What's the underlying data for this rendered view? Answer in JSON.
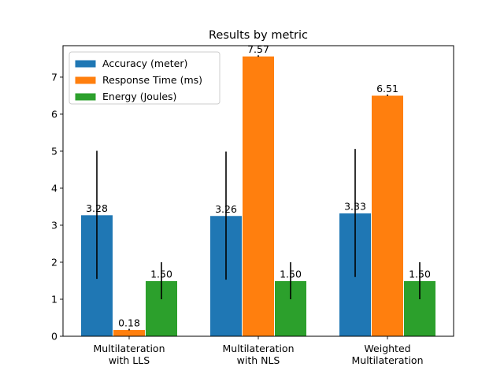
{
  "chart_data": {
    "type": "bar",
    "title": "Results by metric",
    "xlabel": "",
    "ylabel": "",
    "categories": [
      "Multilateration\nwith LLS",
      "Multilateration\nwith NLS",
      "Weighted\nMultilateration"
    ],
    "ylim": [
      0,
      7.85
    ],
    "yticks": [
      0,
      1,
      2,
      3,
      4,
      5,
      6,
      7
    ],
    "grid": false,
    "legend_position": "top-left",
    "series": [
      {
        "name": "Accuracy (meter)",
        "color": "#1f77b4",
        "values": [
          3.28,
          3.26,
          3.33
        ],
        "labels": [
          "3.28",
          "3.26",
          "3.33"
        ],
        "error": [
          1.73,
          1.73,
          1.73
        ]
      },
      {
        "name": "Response Time (ms)",
        "color": "#ff7f0e",
        "values": [
          0.18,
          7.57,
          6.51
        ],
        "labels": [
          "0.18",
          "7.57",
          "6.51"
        ],
        "error": [
          0.02,
          0.02,
          0.02
        ]
      },
      {
        "name": "Energy (Joules)",
        "color": "#2ca02c",
        "values": [
          1.5,
          1.5,
          1.5
        ],
        "labels": [
          "1.50",
          "1.50",
          "1.50"
        ],
        "error": [
          0.5,
          0.5,
          0.5
        ]
      }
    ]
  }
}
